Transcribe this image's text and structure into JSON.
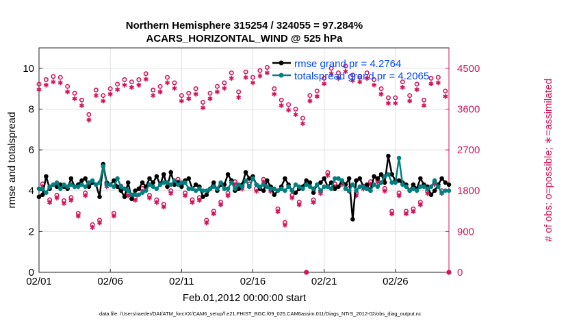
{
  "chart_data": {
    "type": "line",
    "title": [
      "Northern Hemisphere 315254 / 324055 = 97.284%",
      "ACARS_HORIZONTAL_WIND @ 525 hPa"
    ],
    "xlabel": "Feb.01,2012 00:00:00 start",
    "ylabel_left": "rmse and totalspread",
    "ylabel_right": "# of obs: o=possible; ∗=assimilated",
    "footer": "data file: /Users/raeder/DAI/ATM_forcXX/CAM6_setup/f.e21.FHIST_BGC.f09_025.CAM6assim.011/Diags_NTrS_2012-02/obs_diag_output.nc",
    "x_ticks": [
      "02/01",
      "02/06",
      "02/11",
      "02/16",
      "02/21",
      "02/26"
    ],
    "x_tick_days": [
      0,
      5,
      10,
      15,
      20,
      25
    ],
    "x_range_days": [
      0,
      28.75
    ],
    "obs_per_day": 4,
    "ylim_left": [
      0,
      11
    ],
    "yticks_left": [
      "0",
      "2",
      "4",
      "6",
      "8",
      "10"
    ],
    "ylim_right": [
      0,
      4950
    ],
    "yticks_right": [
      "0",
      "900",
      "1800",
      "2700",
      "3600",
      "4500"
    ],
    "grid": true,
    "legend_placement": "top-right",
    "legend": [
      "rmse grand pr = 4.2764",
      "totalspread grand pr = 4.2065"
    ],
    "colors": {
      "rmse": "#000000",
      "spread": "#008080",
      "obs": "#d4145a",
      "legend_text": "#0047ff",
      "grid": "#e0e0e0"
    },
    "series": [
      {
        "name": "rmse",
        "values": [
          3.7,
          3.8,
          4.7,
          4.1,
          4.3,
          4.2,
          4.3,
          4.2,
          4.1,
          4.6,
          4.2,
          4.3,
          4.5,
          4.6,
          4.2,
          4.4,
          4.3,
          3.7,
          5.3,
          4.4,
          4.3,
          4.5,
          4.2,
          4.0,
          3.7,
          4.4,
          3.6,
          4.0,
          4.1,
          4.4,
          4.2,
          4.6,
          4.4,
          4.7,
          4.3,
          4.8,
          4.2,
          4.9,
          4.3,
          4.4,
          4.2,
          4.5,
          4.6,
          4.1,
          4.3,
          4.2,
          3.7,
          3.8,
          4.1,
          4.4,
          4.0,
          4.3,
          4.3,
          4.8,
          4.5,
          4.0,
          4.1,
          4.3,
          4.9,
          4.6,
          4.7,
          4.3,
          4.1,
          4.0,
          4.5,
          4.2,
          3.8,
          4.0,
          4.2,
          4.6,
          4.3,
          4.0,
          3.9,
          4.1,
          4.2,
          4.5,
          4.4,
          3.9,
          4.3,
          4.4,
          4.6,
          4.2,
          4.4,
          4.1,
          4.2,
          4.5,
          4.3,
          4.6,
          2.6,
          4.5,
          4.6,
          4.2,
          4.3,
          4.0,
          4.7,
          4.6,
          4.8,
          4.4,
          5.7,
          4.8,
          4.5,
          4.5,
          4.4,
          4.3,
          4.0,
          4.3,
          4.1,
          4.6,
          4.3,
          4.2,
          3.8,
          4.0,
          4.3,
          4.6,
          4.4,
          4.3
        ]
      },
      {
        "name": "totalspread",
        "values": [
          4.1,
          4.1,
          3.9,
          4.2,
          4.3,
          4.4,
          4.1,
          4.3,
          4.2,
          4.3,
          4.2,
          4.2,
          4.3,
          4.2,
          4.4,
          4.5,
          4.3,
          4.4,
          5.2,
          4.3,
          4.3,
          4.2,
          4.6,
          4.2,
          4.1,
          4.0,
          3.8,
          3.8,
          3.8,
          3.9,
          4.0,
          4.3,
          4.2,
          4.1,
          4.3,
          4.4,
          4.4,
          4.3,
          4.5,
          4.3,
          4.4,
          4.4,
          4.1,
          4.1,
          4.0,
          4.1,
          4.0,
          4.0,
          4.1,
          4.2,
          4.1,
          4.4,
          4.1,
          4.1,
          4.4,
          4.1,
          4.3,
          4.2,
          4.5,
          4.2,
          4.6,
          4.3,
          4.2,
          4.3,
          4.2,
          4.1,
          4.1,
          4.0,
          4.1,
          4.0,
          4.2,
          4.0,
          4.3,
          4.2,
          4.1,
          4.3,
          4.2,
          4.1,
          4.3,
          4.0,
          4.2,
          4.2,
          4.1,
          4.6,
          4.6,
          4.5,
          4.1,
          4.0,
          4.3,
          4.0,
          4.2,
          4.2,
          4.1,
          4.0,
          4.3,
          4.2,
          4.4,
          4.7,
          4.8,
          4.4,
          4.4,
          5.6,
          4.3,
          4.2,
          4.0,
          4.1,
          4.0,
          4.2,
          4.2,
          4.1,
          4.2,
          4.5,
          4.2,
          3.9,
          4.0,
          4.0
        ]
      },
      {
        "name": "obs_possible",
        "values": [
          4150,
          1950,
          4250,
          1600,
          4320,
          1700,
          4300,
          1580,
          4100,
          1650,
          3950,
          1300,
          3800,
          1750,
          3480,
          1050,
          4020,
          1150,
          3900,
          1950,
          4050,
          1300,
          4150,
          1900,
          4250,
          1750,
          4200,
          1650,
          4250,
          1850,
          4380,
          1700,
          4020,
          1600,
          4100,
          1500,
          4300,
          1800,
          4180,
          2050,
          3900,
          1750,
          3950,
          1600,
          4050,
          1650,
          3750,
          1150,
          3950,
          1350,
          4100,
          1550,
          4180,
          1750,
          4400,
          2000,
          3980,
          1900,
          4420,
          1950,
          4300,
          1850,
          4450,
          2050,
          4520,
          1850,
          4050,
          1400,
          3800,
          1100,
          3700,
          1700,
          3600,
          1550,
          3400,
          0,
          3900,
          1600,
          4000,
          1800,
          4280,
          2200,
          4500,
          1950,
          4400,
          2000,
          4550,
          1850,
          4350,
          1750,
          4320,
          1900,
          4400,
          2000,
          4250,
          2050,
          4050,
          1850,
          3850,
          1350,
          3850,
          1750,
          4200,
          1350,
          3900,
          1400,
          4150,
          1550,
          3800,
          1800,
          4280,
          2000,
          4300,
          1800,
          4000,
          0
        ]
      },
      {
        "name": "obs_assimilated",
        "values": [
          4030,
          1890,
          4130,
          1540,
          4200,
          1640,
          4180,
          1520,
          3980,
          1590,
          3830,
          1240,
          3680,
          1690,
          3360,
          990,
          3900,
          1090,
          3780,
          1890,
          3930,
          1240,
          4030,
          1840,
          4130,
          1690,
          4080,
          1590,
          4130,
          1790,
          4260,
          1640,
          3900,
          1540,
          3980,
          1440,
          4180,
          1740,
          4060,
          1990,
          3780,
          1690,
          3830,
          1540,
          3930,
          1590,
          3630,
          1090,
          3830,
          1290,
          3980,
          1490,
          4060,
          1690,
          4280,
          1940,
          3860,
          1840,
          4300,
          1890,
          4180,
          1790,
          4330,
          1990,
          4400,
          1790,
          3930,
          1340,
          3680,
          1040,
          3580,
          1640,
          3480,
          1490,
          3280,
          0,
          3780,
          1540,
          3880,
          1740,
          4160,
          2140,
          4380,
          1890,
          4280,
          1940,
          4430,
          1790,
          4230,
          1690,
          4200,
          1840,
          4280,
          1940,
          4130,
          1990,
          3930,
          1790,
          3730,
          1290,
          3730,
          1690,
          4080,
          1290,
          3780,
          1340,
          4030,
          1490,
          3680,
          1740,
          4160,
          1940,
          4180,
          1740,
          3880,
          0
        ]
      }
    ]
  }
}
